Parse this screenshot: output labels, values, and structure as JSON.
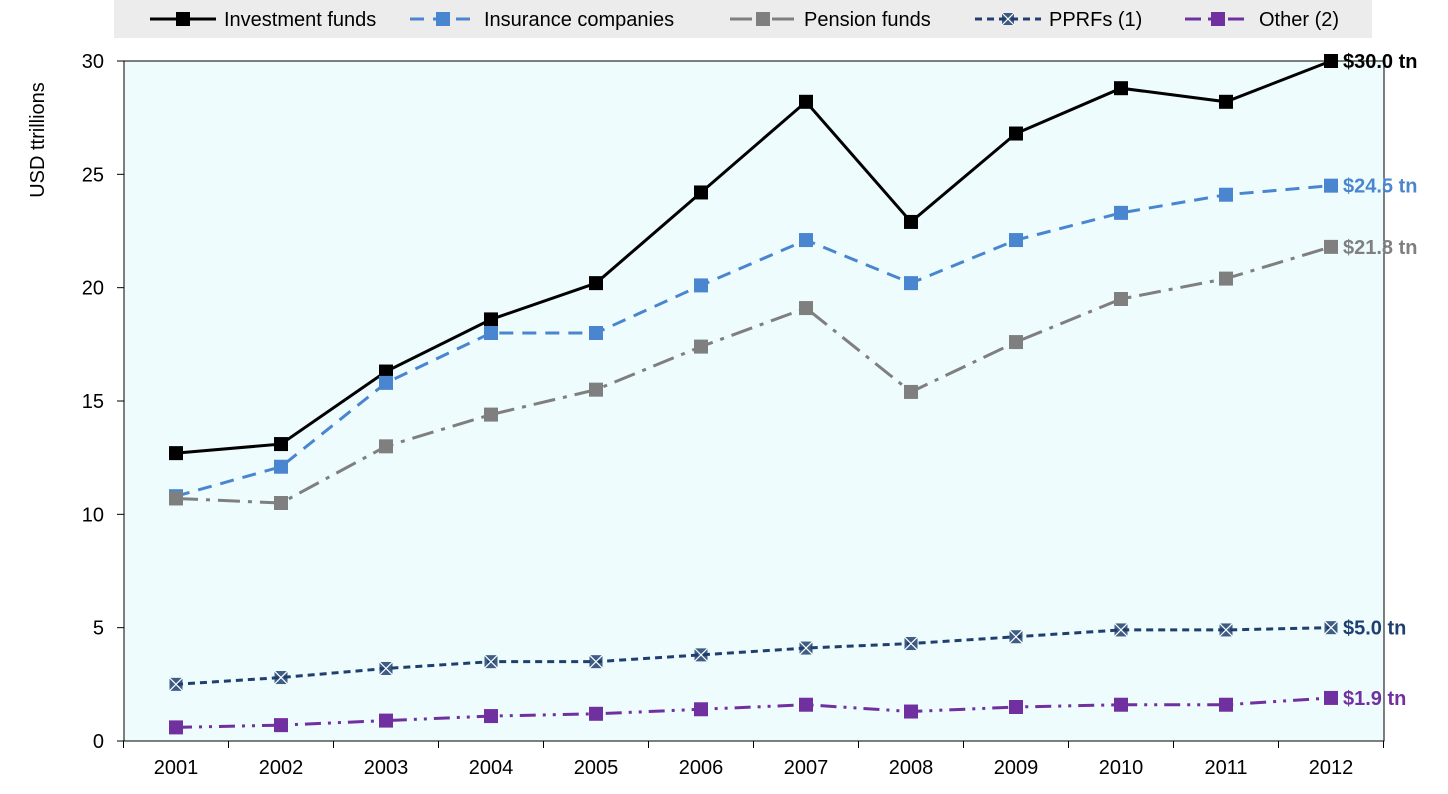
{
  "chart_data": {
    "type": "line",
    "ylabel": "USD  ttrillions",
    "ylim": [
      0,
      30
    ],
    "yticks": [
      0,
      5,
      10,
      15,
      20,
      25,
      30
    ],
    "categories": [
      "2001",
      "2002",
      "2003",
      "2004",
      "2005",
      "2006",
      "2007",
      "2008",
      "2009",
      "2010",
      "2011",
      "2012"
    ],
    "legend_position": "top",
    "grid": false,
    "series": [
      {
        "name": "Investment funds",
        "color": "#000000",
        "dash": "solid",
        "marker": "square",
        "values": [
          12.7,
          13.1,
          16.3,
          18.6,
          20.2,
          24.2,
          28.2,
          22.9,
          26.8,
          28.8,
          28.2,
          30.0
        ],
        "end_label": "$30.0 tn"
      },
      {
        "name": "Insurance companies",
        "color": "#4a86cf",
        "dash": "dashed",
        "marker": "square",
        "values": [
          10.8,
          12.1,
          15.8,
          18.0,
          18.0,
          20.1,
          22.1,
          20.2,
          22.1,
          23.3,
          24.1,
          24.5
        ],
        "end_label": "$24.5 tn"
      },
      {
        "name": "Pension funds",
        "color": "#7f7f7f",
        "dash": "dashdot",
        "marker": "square",
        "values": [
          10.7,
          10.5,
          13.0,
          14.4,
          15.5,
          17.4,
          19.1,
          15.4,
          17.6,
          19.5,
          20.4,
          21.8
        ],
        "end_label": "$21.8 tn"
      },
      {
        "name": "PPRFs (1)",
        "color": "#1f3f6e",
        "dash": "dotted",
        "marker": "x",
        "values": [
          2.5,
          2.8,
          3.2,
          3.5,
          3.5,
          3.8,
          4.1,
          4.3,
          4.6,
          4.9,
          4.9,
          5.0
        ],
        "end_label": "$5.0 tn"
      },
      {
        "name": "Other (2)",
        "color": "#7030a0",
        "dash": "dashdotdot",
        "marker": "square",
        "values": [
          0.6,
          0.7,
          0.9,
          1.1,
          1.2,
          1.4,
          1.6,
          1.3,
          1.5,
          1.6,
          1.6,
          1.9
        ],
        "end_label": "$1.9 tn"
      }
    ]
  }
}
